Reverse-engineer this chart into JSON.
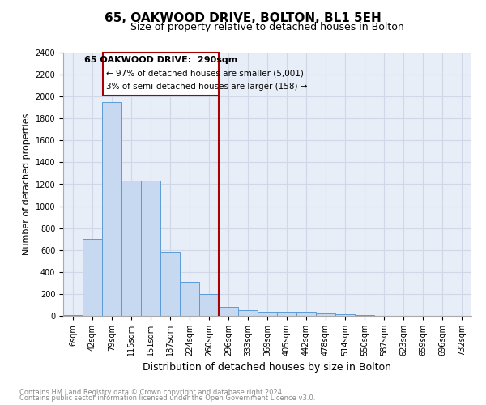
{
  "title": "65, OAKWOOD DRIVE, BOLTON, BL1 5EH",
  "subtitle": "Size of property relative to detached houses in Bolton",
  "xlabel": "Distribution of detached houses by size in Bolton",
  "ylabel": "Number of detached properties",
  "footnote1": "Contains HM Land Registry data © Crown copyright and database right 2024.",
  "footnote2": "Contains public sector information licensed under the Open Government Licence v3.0.",
  "bar_categories": [
    "6sqm",
    "42sqm",
    "79sqm",
    "115sqm",
    "151sqm",
    "187sqm",
    "224sqm",
    "260sqm",
    "296sqm",
    "333sqm",
    "369sqm",
    "405sqm",
    "442sqm",
    "478sqm",
    "514sqm",
    "550sqm",
    "587sqm",
    "623sqm",
    "659sqm",
    "696sqm",
    "732sqm"
  ],
  "bar_values": [
    10,
    700,
    1950,
    1230,
    1230,
    580,
    310,
    200,
    80,
    55,
    40,
    35,
    35,
    20,
    15,
    5,
    0,
    0,
    0,
    0,
    0
  ],
  "bar_color": "#c6d9f0",
  "bar_edge_color": "#5b9bd5",
  "vline_color": "#aa0000",
  "annotation_title": "65 OAKWOOD DRIVE:  290sqm",
  "annotation_line1": "← 97% of detached houses are smaller (5,001)",
  "annotation_line2": "3% of semi-detached houses are larger (158) →",
  "annotation_box_color": "#aa0000",
  "ylim": [
    0,
    2400
  ],
  "yticks": [
    0,
    200,
    400,
    600,
    800,
    1000,
    1200,
    1400,
    1600,
    1800,
    2000,
    2200,
    2400
  ],
  "grid_color": "#d0d8e8",
  "background_color": "#e8eef8"
}
